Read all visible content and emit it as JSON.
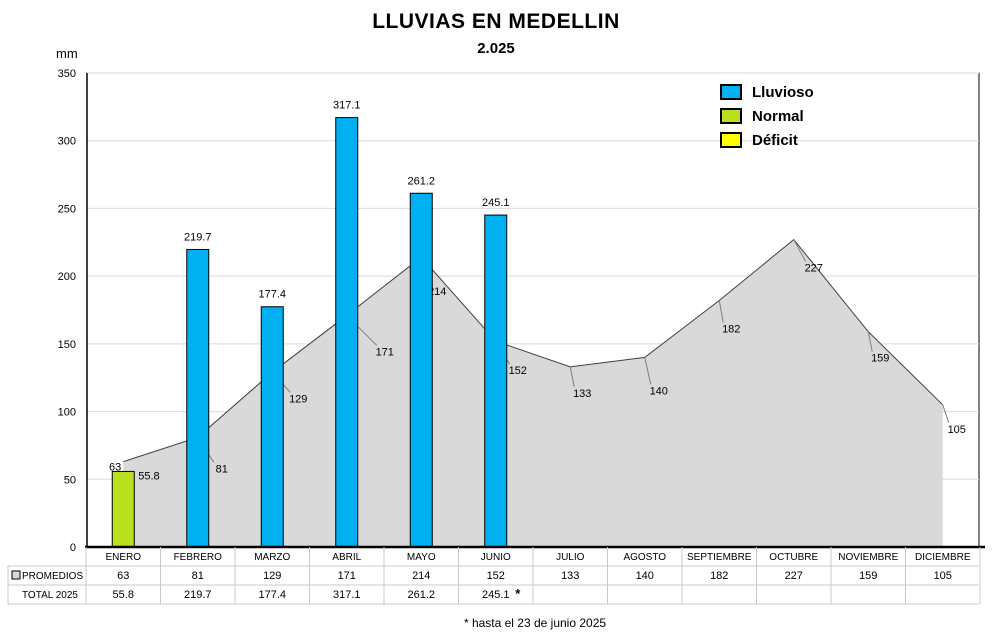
{
  "header": {
    "title": "LLUVIAS EN MEDELLIN",
    "subtitle": "2.025",
    "unit": "mm"
  },
  "legend": [
    {
      "label": "Lluvioso",
      "color": "#00b0f0"
    },
    {
      "label": "Normal",
      "color": "#b7e01e"
    },
    {
      "label": "Déficit",
      "color": "#ffff00"
    }
  ],
  "table": {
    "row_labels": [
      "PROMEDIOS",
      "TOTAL 2025"
    ],
    "total_marker": "*"
  },
  "footnote": "* hasta el 23 de junio 2025",
  "chart_data": {
    "type": "bar",
    "categories": [
      "ENERO",
      "FEBRERO",
      "MARZO",
      "ABRIL",
      "MAYO",
      "JUNIO",
      "JULIO",
      "AGOSTO",
      "SEPTIEMBRE",
      "OCTUBRE",
      "NOVIEMBRE",
      "DICIEMBRE"
    ],
    "series": [
      {
        "name": "TOTAL 2025",
        "chart_type": "bar",
        "values": [
          55.8,
          219.7,
          177.4,
          317.1,
          261.2,
          245.1,
          null,
          null,
          null,
          null,
          null,
          null
        ],
        "classes": [
          "Normal",
          "Lluvioso",
          "Lluvioso",
          "Lluvioso",
          "Lluvioso",
          "Lluvioso",
          null,
          null,
          null,
          null,
          null,
          null
        ]
      },
      {
        "name": "PROMEDIOS",
        "chart_type": "area",
        "values": [
          63,
          81,
          129,
          171,
          214,
          152,
          133,
          140,
          182,
          227,
          159,
          105
        ],
        "color": "#d9d9d9"
      }
    ],
    "ylabel": "mm",
    "ylim": [
      0,
      350
    ],
    "yticks": [
      0,
      50,
      100,
      150,
      200,
      250,
      300,
      350
    ],
    "grid": true,
    "legend_position": "top-right"
  }
}
